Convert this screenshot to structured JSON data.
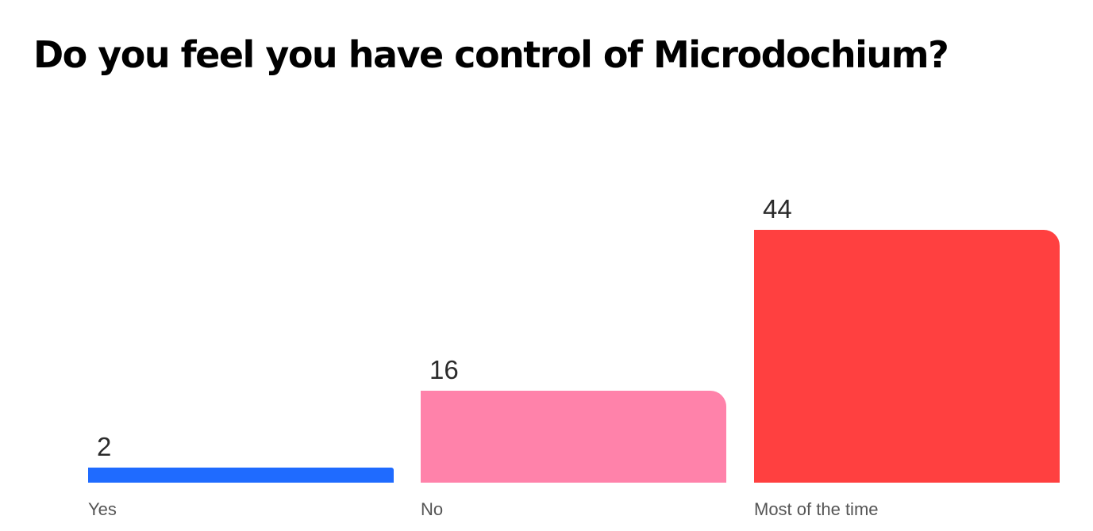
{
  "chart_data": {
    "type": "bar",
    "title": "Do you feel you have control of Microdochium?",
    "categories": [
      "Yes",
      "No",
      "Most of the time"
    ],
    "values": [
      2,
      16,
      44
    ],
    "colors": [
      "#1f6bff",
      "#ff82aa",
      "#ff4040"
    ],
    "value_labels": [
      "2",
      "16",
      "44"
    ],
    "ylim": [
      0,
      44
    ],
    "grid": false,
    "legend": "none"
  }
}
